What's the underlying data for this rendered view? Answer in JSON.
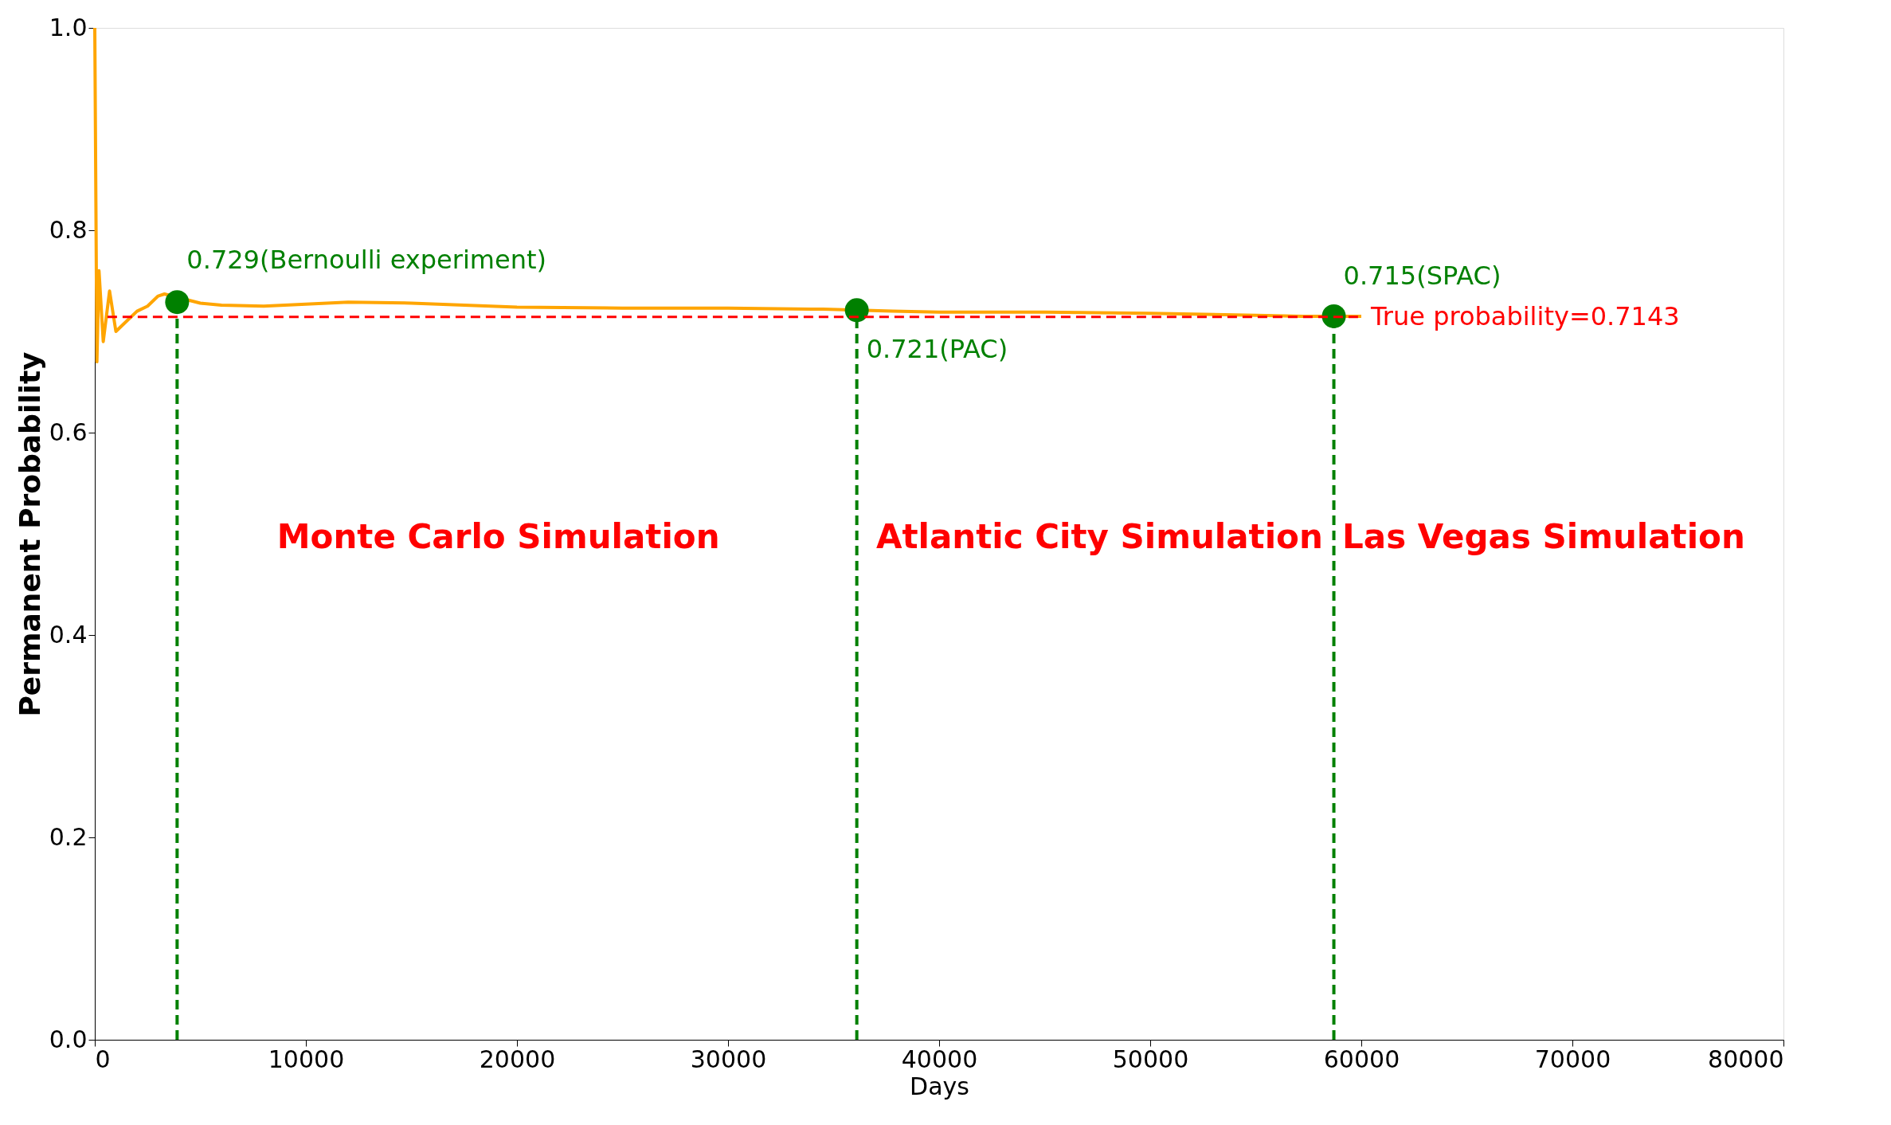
{
  "chart_data": {
    "type": "line",
    "xlabel": "Days",
    "ylabel": "Permanent Probability",
    "xlim": [
      0,
      80000
    ],
    "ylim": [
      0,
      1.0
    ],
    "xticks": [
      0,
      10000,
      20000,
      30000,
      40000,
      50000,
      60000,
      70000,
      80000
    ],
    "yticks": [
      {
        "value": 0,
        "label": "0.0"
      },
      0.2,
      0.4,
      0.6,
      0.8,
      {
        "value": 1,
        "label": "1.0"
      }
    ],
    "grid": false,
    "series": [
      {
        "color": "#ffa500",
        "line_style": "solid",
        "x": [
          0,
          100,
          200,
          400,
          700,
          1000,
          1500,
          2000,
          2500,
          3000,
          3300,
          5000,
          6000,
          8000,
          10000,
          12000,
          15000,
          20000,
          25000,
          30000,
          34500,
          37800,
          40000,
          45000,
          50000,
          55000,
          57200,
          60000
        ],
        "values": [
          1.0,
          0.67,
          0.76,
          0.69,
          0.74,
          0.7,
          0.71,
          0.72,
          0.725,
          0.735,
          0.737,
          0.728,
          0.726,
          0.725,
          0.727,
          0.729,
          0.728,
          0.724,
          0.723,
          0.723,
          0.722,
          0.72,
          0.719,
          0.719,
          0.718,
          0.716,
          0.715,
          0.715
        ]
      },
      {
        "color": "#008000",
        "line_style": "dashed",
        "x": [
          3900,
          3900
        ],
        "values": [
          0,
          0.729
        ]
      },
      {
        "color": "#008000",
        "line_style": "dashed",
        "x": [
          36100,
          36100
        ],
        "values": [
          0,
          0.721
        ]
      },
      {
        "color": "#008000",
        "line_style": "dashed",
        "x": [
          58700,
          58700
        ],
        "values": [
          0,
          0.715
        ]
      },
      {
        "type": "scatter",
        "color": "#008000",
        "marker": "circle",
        "x": [
          3900,
          36100,
          58700
        ],
        "values": [
          0.729,
          0.721,
          0.715
        ]
      }
    ],
    "ref_lines": [
      {
        "axis": "y",
        "value": 0.7143,
        "label": "True probability=0.7143",
        "color": "#ff0000",
        "line_style": "dashed"
      }
    ],
    "annotations": [
      {
        "text": "0.729(Bernoulli experiment)",
        "x": 3900,
        "y": 0.729
      },
      {
        "text": "0.721(PAC)",
        "x": 36100,
        "y": 0.721
      },
      {
        "text": "0.715(SPAC)",
        "x": 58700,
        "y": 0.715
      },
      "Monte Carlo Simulation",
      "Atlantic City Simulation",
      "Las Vegas Simulation"
    ]
  }
}
